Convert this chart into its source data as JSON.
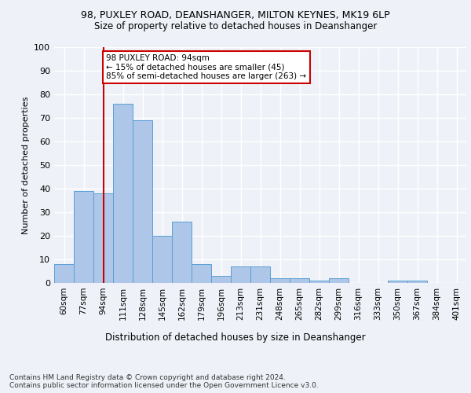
{
  "title_line1": "98, PUXLEY ROAD, DEANSHANGER, MILTON KEYNES, MK19 6LP",
  "title_line2": "Size of property relative to detached houses in Deanshanger",
  "xlabel": "Distribution of detached houses by size in Deanshanger",
  "ylabel": "Number of detached properties",
  "categories": [
    "60sqm",
    "77sqm",
    "94sqm",
    "111sqm",
    "128sqm",
    "145sqm",
    "162sqm",
    "179sqm",
    "196sqm",
    "213sqm",
    "231sqm",
    "248sqm",
    "265sqm",
    "282sqm",
    "299sqm",
    "316sqm",
    "333sqm",
    "350sqm",
    "367sqm",
    "384sqm",
    "401sqm"
  ],
  "values": [
    8,
    39,
    38,
    76,
    69,
    20,
    26,
    8,
    3,
    7,
    7,
    2,
    2,
    1,
    2,
    0,
    0,
    1,
    1,
    0,
    0
  ],
  "bar_color": "#aec6e8",
  "bar_edge_color": "#5a9fd4",
  "marker_index": 2,
  "marker_color": "#cc0000",
  "annotation_text": "98 PUXLEY ROAD: 94sqm\n← 15% of detached houses are smaller (45)\n85% of semi-detached houses are larger (263) →",
  "annotation_box_color": "#ffffff",
  "annotation_box_edge_color": "#cc0000",
  "ylim": [
    0,
    100
  ],
  "yticks": [
    0,
    10,
    20,
    30,
    40,
    50,
    60,
    70,
    80,
    90,
    100
  ],
  "footnote": "Contains HM Land Registry data © Crown copyright and database right 2024.\nContains public sector information licensed under the Open Government Licence v3.0.",
  "background_color": "#eef2f8",
  "grid_color": "#ffffff"
}
